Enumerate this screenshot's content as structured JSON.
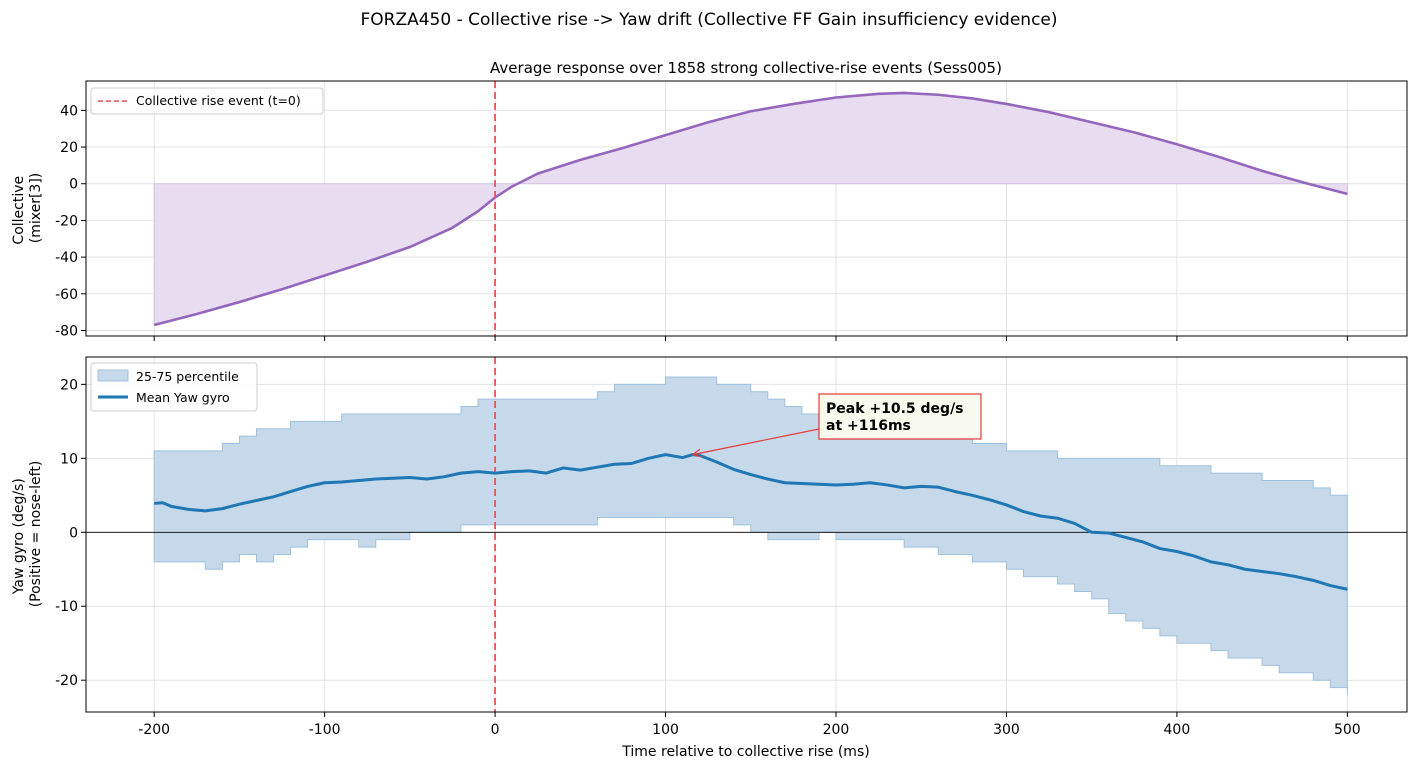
{
  "figure": {
    "suptitle": "FORZA450 - Collective rise -> Yaw drift (Collective FF Gain insufficiency evidence)"
  },
  "chart_data": [
    {
      "type": "area",
      "title": "Average response over 1858 strong collective-rise events (Sess005)",
      "xlabel": "",
      "ylabel": [
        "Collective",
        "(mixer[3])"
      ],
      "xlim": [
        -240,
        535
      ],
      "ylim": [
        -83,
        56
      ],
      "xticks": [
        -200,
        -100,
        0,
        100,
        200,
        300,
        400,
        500
      ],
      "xtick_labels": [
        "-200",
        "-100",
        "0",
        "100",
        "200",
        "300",
        "400",
        "500"
      ],
      "yticks": [
        -80,
        -60,
        -40,
        -20,
        0,
        20,
        40
      ],
      "ytick_labels": [
        "-80",
        "-60",
        "-40",
        "-20",
        "0",
        "20",
        "40"
      ],
      "grid": true,
      "legend": {
        "placement": "upper-left",
        "entries": [
          "Collective rise event (t=0)"
        ]
      },
      "colors": {
        "line": "#9467bd",
        "fill": "#e8dcf0",
        "event": "#ef5350"
      },
      "event_x": 0,
      "series": [
        {
          "x": [
            -200,
            -175,
            -150,
            -125,
            -100,
            -75,
            -50,
            -25,
            -10,
            0,
            10,
            25,
            50,
            75,
            100,
            125,
            150,
            175,
            200,
            225,
            240,
            260,
            280,
            300,
            325,
            350,
            375,
            400,
            425,
            450,
            475,
            500
          ],
          "values": [
            -77,
            -71,
            -64.5,
            -57.5,
            -50,
            -42.5,
            -34.5,
            -24,
            -15,
            -7.5,
            -1.5,
            5.5,
            13,
            19.5,
            26.5,
            33.5,
            39.5,
            43.5,
            47,
            49,
            49.5,
            48.5,
            46.5,
            43.5,
            39,
            33.5,
            28,
            21.5,
            14.5,
            7,
            0.5,
            -5.5
          ]
        }
      ]
    },
    {
      "type": "line",
      "title": "",
      "xlabel": "Time relative to collective rise (ms)",
      "ylabel": [
        "Yaw gyro (deg/s)",
        "(Positive = nose-left)"
      ],
      "xlim": [
        -240,
        535
      ],
      "ylim": [
        -24.3,
        23.7
      ],
      "xticks": [
        -200,
        -100,
        0,
        100,
        200,
        300,
        400,
        500
      ],
      "xtick_labels": [
        "-200",
        "-100",
        "0",
        "100",
        "200",
        "300",
        "400",
        "500"
      ],
      "yticks": [
        -20,
        -10,
        0,
        10,
        20
      ],
      "ytick_labels": [
        "-20",
        "-10",
        "0",
        "10",
        "20"
      ],
      "grid": true,
      "legend": {
        "placement": "upper-left",
        "entries": [
          "25-75 percentile",
          "Mean Yaw gyro"
        ]
      },
      "colors": {
        "mean": "#1f77b4",
        "band_fill": "#c5d9ea",
        "band_edge": "#9fc1de",
        "event": "#ef5350",
        "annotation": "#e53935",
        "annotation_bg": "#f8faee"
      },
      "event_x": 0,
      "zero_line": true,
      "annotation": {
        "lines": [
          "Peak +10.5 deg/s",
          "at +116ms"
        ],
        "x": 116,
        "y": 10.5
      },
      "series": [
        {
          "name": "Mean Yaw gyro",
          "x": [
            -200,
            -195,
            -190,
            -180,
            -170,
            -160,
            -150,
            -140,
            -130,
            -120,
            -110,
            -100,
            -90,
            -80,
            -70,
            -60,
            -50,
            -40,
            -30,
            -20,
            -10,
            0,
            10,
            20,
            30,
            40,
            50,
            60,
            70,
            80,
            90,
            100,
            110,
            116,
            120,
            130,
            140,
            150,
            160,
            170,
            180,
            190,
            200,
            210,
            220,
            230,
            240,
            250,
            260,
            270,
            280,
            290,
            300,
            310,
            320,
            330,
            340,
            350,
            360,
            370,
            380,
            390,
            400,
            410,
            420,
            430,
            440,
            450,
            460,
            470,
            480,
            490,
            500
          ],
          "values": [
            3.9,
            4.0,
            3.5,
            3.1,
            2.9,
            3.2,
            3.8,
            4.3,
            4.8,
            5.5,
            6.2,
            6.7,
            6.8,
            7.0,
            7.2,
            7.3,
            7.4,
            7.2,
            7.5,
            8.0,
            8.2,
            8.0,
            8.2,
            8.3,
            8.0,
            8.7,
            8.4,
            8.8,
            9.2,
            9.3,
            10.0,
            10.5,
            10.1,
            10.5,
            10.4,
            9.5,
            8.5,
            7.8,
            7.2,
            6.7,
            6.6,
            6.5,
            6.4,
            6.5,
            6.7,
            6.4,
            6.0,
            6.2,
            6.1,
            5.5,
            5.0,
            4.4,
            3.7,
            2.8,
            2.2,
            1.9,
            1.2,
            0.0,
            -0.1,
            -0.7,
            -1.3,
            -2.2,
            -2.6,
            -3.2,
            -4.0,
            -4.4,
            -5.0,
            -5.3,
            -5.6,
            -6.0,
            -6.5,
            -7.2,
            -7.7
          ]
        },
        {
          "name": "25-75 percentile",
          "x": [
            -200,
            -180,
            -170,
            -160,
            -150,
            -140,
            -130,
            -120,
            -110,
            -100,
            -90,
            -80,
            -70,
            -60,
            -50,
            -40,
            -30,
            -20,
            -10,
            0,
            10,
            20,
            30,
            40,
            50,
            60,
            70,
            80,
            90,
            100,
            110,
            120,
            130,
            140,
            150,
            160,
            170,
            180,
            190,
            200,
            210,
            220,
            230,
            240,
            250,
            260,
            270,
            280,
            290,
            300,
            310,
            320,
            330,
            340,
            350,
            360,
            370,
            380,
            390,
            400,
            410,
            420,
            430,
            440,
            450,
            460,
            470,
            480,
            490,
            500
          ],
          "upper": [
            11,
            11,
            11,
            12,
            13,
            14,
            14,
            15,
            15,
            15,
            16,
            16,
            16,
            16,
            16,
            16,
            16,
            17,
            18,
            18,
            18,
            18,
            18,
            18,
            18,
            19,
            20,
            20,
            20,
            21,
            21,
            21,
            20,
            20,
            19,
            18,
            17,
            16,
            15,
            15,
            15,
            14,
            14,
            13,
            13,
            13,
            13,
            12,
            12,
            11,
            11,
            11,
            10,
            10,
            10,
            10,
            10,
            10,
            9,
            9,
            9,
            8,
            8,
            8,
            7,
            7,
            7,
            6,
            5,
            5
          ],
          "lower": [
            -4,
            -4,
            -5,
            -4,
            -3,
            -4,
            -3,
            -2,
            -1,
            -1,
            -1,
            -2,
            -1,
            -1,
            0,
            0,
            0,
            1,
            1,
            1,
            1,
            1,
            1,
            1,
            1,
            2,
            2,
            2,
            2,
            2,
            2,
            2,
            2,
            1,
            0,
            -1,
            -1,
            -1,
            0,
            -1,
            -1,
            -1,
            -1,
            -2,
            -2,
            -3,
            -3,
            -4,
            -4,
            -5,
            -6,
            -6,
            -7,
            -8,
            -9,
            -11,
            -12,
            -13,
            -14,
            -15,
            -15,
            -16,
            -17,
            -17,
            -18,
            -19,
            -19,
            -20,
            -21,
            -22
          ]
        }
      ]
    }
  ]
}
